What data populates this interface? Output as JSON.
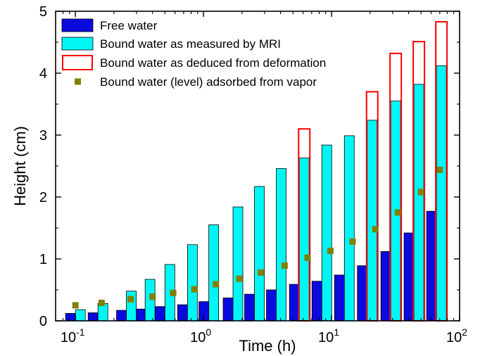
{
  "chart_data": {
    "type": "bar",
    "xlabel": "Time (h)",
    "ylabel": "Height (cm)",
    "x_scale": "log",
    "xlim": [
      0.07,
      100
    ],
    "ylim": [
      0,
      5
    ],
    "x_ticks": [
      {
        "base": "10",
        "exp": "-1",
        "value": 0.1
      },
      {
        "base": "10",
        "exp": "0",
        "value": 1
      },
      {
        "base": "10",
        "exp": "1",
        "value": 10
      },
      {
        "base": "10",
        "exp": "2",
        "value": 100
      }
    ],
    "y_ticks": [
      "0",
      "1",
      "2",
      "3",
      "4",
      "5"
    ],
    "legend_position": "top-left",
    "grid": false,
    "colors": {
      "free": "#0a0adf",
      "bound_mri": "#00f5f5",
      "deformation": "#ff0000",
      "vapor": "#808000"
    },
    "series": [
      {
        "name": "Free water",
        "key": "free",
        "marker": "bar",
        "x": [
          0.1,
          0.15,
          0.25,
          0.35,
          0.5,
          0.75,
          1.1,
          1.7,
          2.5,
          3.7,
          5.6,
          8.4,
          12.6,
          19,
          29,
          44,
          66
        ],
        "values": [
          0.12,
          0.13,
          0.17,
          0.19,
          0.23,
          0.26,
          0.31,
          0.37,
          0.43,
          0.5,
          0.59,
          0.64,
          0.74,
          0.89,
          1.12,
          1.42,
          1.77
        ]
      },
      {
        "name": "Bound water as measured by MRI",
        "key": "bound_mri",
        "marker": "bar",
        "x": [
          0.1,
          0.15,
          0.25,
          0.35,
          0.5,
          0.75,
          1.1,
          1.7,
          2.5,
          3.7,
          5.6,
          8.4,
          12.6,
          19,
          29,
          44,
          66
        ],
        "values": [
          0.18,
          0.28,
          0.48,
          0.67,
          0.91,
          1.23,
          1.55,
          1.84,
          2.17,
          2.46,
          2.63,
          2.84,
          2.99,
          3.24,
          3.55,
          3.82,
          4.12
        ]
      },
      {
        "name": "Bound water as deduced from deformation",
        "key": "deformation",
        "marker": "open-bar",
        "x": [
          5.6,
          19,
          29,
          44,
          66
        ],
        "values": [
          3.1,
          3.7,
          4.32,
          4.51,
          4.83
        ]
      },
      {
        "name": "Bound water (level) adsorbed from vapor",
        "key": "vapor",
        "marker": "square",
        "x": [
          0.1,
          0.16,
          0.27,
          0.4,
          0.58,
          0.85,
          1.25,
          1.9,
          2.8,
          4.3,
          6.5,
          9.8,
          14.6,
          22,
          33,
          50,
          70
        ],
        "values": [
          0.25,
          0.29,
          0.35,
          0.39,
          0.45,
          0.51,
          0.59,
          0.68,
          0.78,
          0.89,
          1.02,
          1.13,
          1.28,
          1.48,
          1.75,
          2.08,
          2.44
        ]
      }
    ]
  }
}
